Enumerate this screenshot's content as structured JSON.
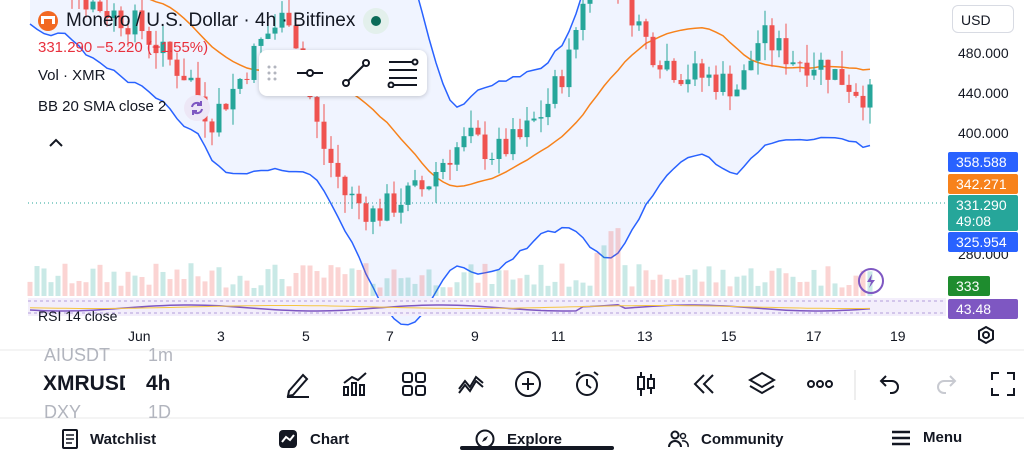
{
  "header": {
    "title": "Monero / U.S. Dollar · 4h · Bitfinex",
    "price_change": "331.290  −5.220 (−1.55%)",
    "currency": "USD"
  },
  "indicators": {
    "volume": "Vol · XMR",
    "bollinger": "BB 20 SMA close 2",
    "rsi": "RSI 14 close"
  },
  "price_axis": {
    "ticks": [
      "480.000",
      "440.000",
      "400.000",
      "280.000"
    ],
    "tags": {
      "bb_upper": "358.588",
      "bb_basis": "342.271",
      "last_price": "331.290",
      "countdown": "49:08",
      "bb_lower": "325.954",
      "volume": "333",
      "rsi": "43.48"
    }
  },
  "time_axis": {
    "ticks": [
      "Jun",
      "3",
      "5",
      "7",
      "9",
      "11",
      "13",
      "15",
      "17",
      "19"
    ]
  },
  "symbols": {
    "prev": "AIUSDT",
    "prev_tf": "1m",
    "current": "XMRUSD",
    "current_tf": "4h",
    "next": "DXY",
    "next_tf": "1D"
  },
  "nav": {
    "watchlist": "Watchlist",
    "chart": "Chart",
    "explore": "Explore",
    "community": "Community",
    "menu": "Menu"
  },
  "colors": {
    "up": "#26a69a",
    "down": "#ef5350",
    "band": "#2962ff",
    "basis": "#f7821b",
    "rsi": "#7e57c2"
  },
  "chart_data": {
    "type": "candlestick",
    "timeframe": "4h",
    "x_labels": [
      "Jun",
      "3",
      "5",
      "7",
      "9",
      "11",
      "13",
      "15",
      "17",
      "19"
    ],
    "ylim": [
      260,
      500
    ],
    "y_ticks": [
      280,
      400,
      440,
      480
    ],
    "last_price": 331.29,
    "bb_upper_last": 358.588,
    "bb_basis_last": 342.271,
    "bb_lower_last": 325.954
  }
}
